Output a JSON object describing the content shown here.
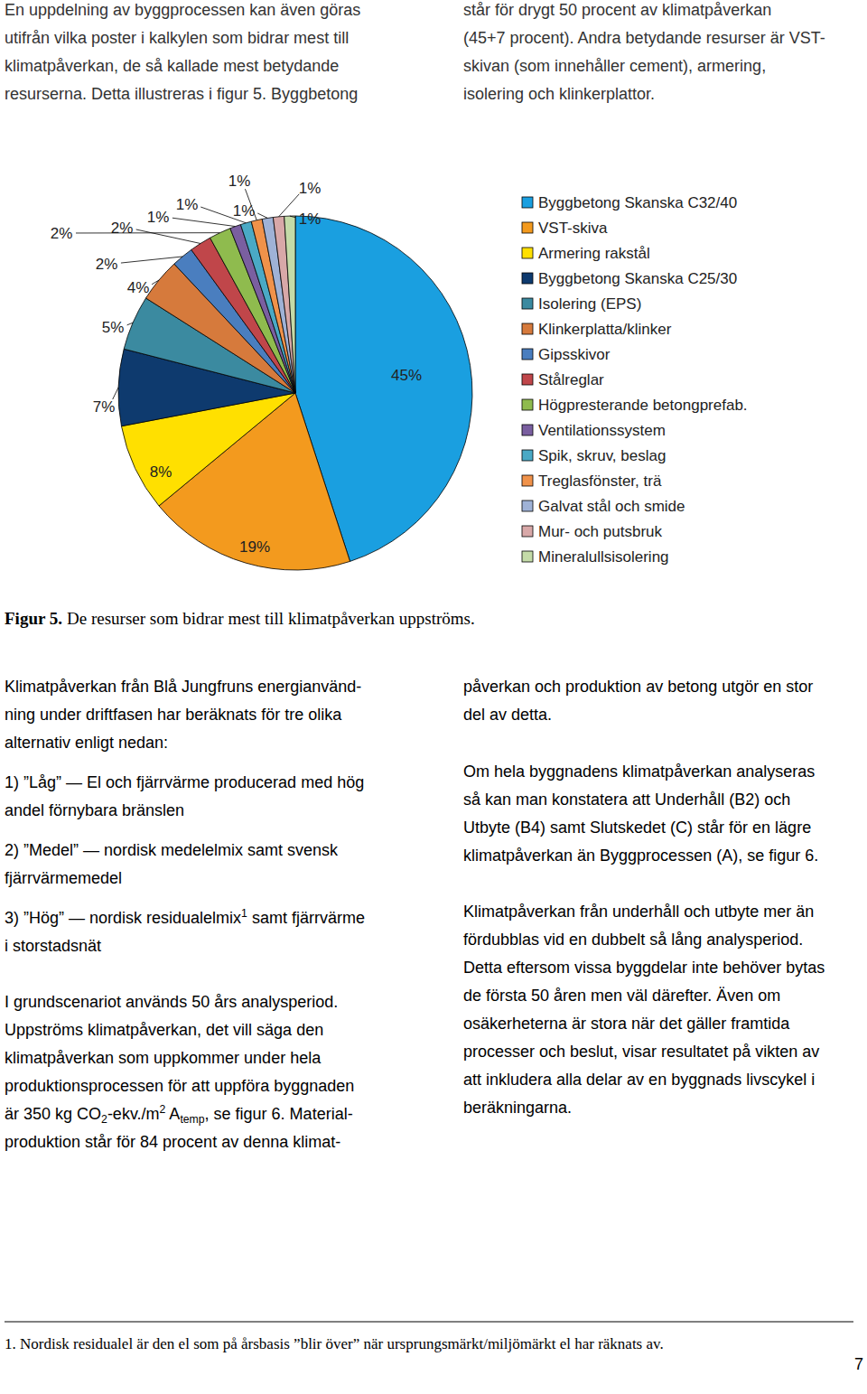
{
  "intro": {
    "left": [
      "En uppdelning av byggprocessen kan även göras",
      "utifrån vilka poster i kalkylen som bidrar mest till",
      "klimatpåverkan, de så kallade mest betydande",
      "resurserna. Detta illustreras i figur 5. Byggbetong"
    ],
    "right": [
      "står för drygt 50 procent av klimatpåverkan",
      "(45+7 procent). Andra betydande resurser är VST-",
      "skivan (som innehåller cement), armering,",
      "isolering och klinkerplattor."
    ]
  },
  "chart_data": {
    "type": "pie",
    "categories": [
      "Byggbetong Skanska C32/40",
      "VST-skiva",
      "Armering rakstål",
      "Byggbetong Skanska C25/30",
      "Isolering (EPS)",
      "Klinkerplatta/klinker",
      "Gipsskivor",
      "Stålreglar",
      "Högpresterande betongprefab.",
      "Ventilationssystem",
      "Spik, skruv, beslag",
      "Treglasfönster, trä",
      "Galvat stål och smide",
      "Mur- och putsbruk",
      "Mineralullsisolering"
    ],
    "values": [
      45,
      19,
      8,
      7,
      5,
      4,
      2,
      2,
      2,
      1,
      1,
      1,
      1,
      1,
      1
    ],
    "value_labels": [
      "45%",
      "19%",
      "8%",
      "7%",
      "5%",
      "4%",
      "2%",
      "2%",
      "2%",
      "1%",
      "1%",
      "1%",
      "1%",
      "1%",
      "1%"
    ],
    "colors": [
      "#1a9fe0",
      "#f39a1e",
      "#ffe000",
      "#0e3a6e",
      "#3b8aa0",
      "#d67a3c",
      "#4a7ebf",
      "#c0464a",
      "#8fbb4e",
      "#7a5fa0",
      "#4aa9c5",
      "#f0924a",
      "#9fb2d6",
      "#d8a8a8",
      "#c4dba8"
    ],
    "data_labels": true,
    "legend": "right"
  },
  "caption": {
    "label": "Figur 5.",
    "text": "De resurser som bidrar mest till klimatpåverkan uppströms."
  },
  "body": {
    "left": [
      [
        "Klimatpåverkan från Blå Jungfruns energianvänd-",
        "ning under driftfasen har beräknats för tre olika",
        "alternativ enligt nedan:"
      ],
      [
        "1) ”Låg” — El och fjärrvärme producerad med hög",
        "andel förnybara bränslen"
      ],
      [
        "2) ”Medel” — nordisk medelelmix samt svensk",
        "fjärrvärmemedel"
      ],
      [
        [
          {
            "text": "3) ”Hög” — nordisk residualelmix"
          },
          {
            "text": "1",
            "style": "sup"
          },
          {
            "text": " samt fjärrvärme"
          }
        ],
        "i storstadsnät"
      ],
      [
        "I grundscenariot används 50 års analysperiod.",
        "Uppströms klimatpåverkan, det vill säga den",
        "klimatpåverkan som uppkommer under hela",
        "produktionsprocessen för att uppföra byggnaden",
        [
          {
            "text": "är 350 kg CO"
          },
          {
            "text": "2",
            "style": "sub"
          },
          {
            "text": "-ekv./m"
          },
          {
            "text": "2",
            "style": "sup"
          },
          {
            "text": " A"
          },
          {
            "text": "temp",
            "style": "sub"
          },
          {
            "text": ", se figur 6. Material-"
          }
        ],
        "produktion står för 84 procent av denna klimat-"
      ]
    ],
    "right": [
      [
        "påverkan och produktion av betong utgör en stor",
        "del av detta."
      ],
      [
        "Om hela byggnadens klimatpåverkan analyseras",
        "så kan man konstatera att Underhåll (B2) och",
        "Utbyte (B4) samt Slutskedet (C) står för en lägre",
        "klimatpåverkan än Byggprocessen (A), se figur 6."
      ],
      [
        "Klimatpåverkan från underhåll och utbyte mer än",
        "fördubblas vid en dubbelt så lång analysperiod.",
        "Detta eftersom vissa byggdelar inte behöver bytas",
        "de första 50 åren men väl därefter. Även om",
        "osäkerheterna är stora när det gäller framtida",
        "processer och beslut, visar resultatet på vikten av",
        "att inkludera alla delar av en byggnads livscykel i",
        "beräkningarna."
      ]
    ]
  },
  "footnote": "1. Nordisk residualel är den el som på årsbasis ”blir över” när ursprungsmärkt/miljömärkt el har räknats av.",
  "page_number": "7"
}
